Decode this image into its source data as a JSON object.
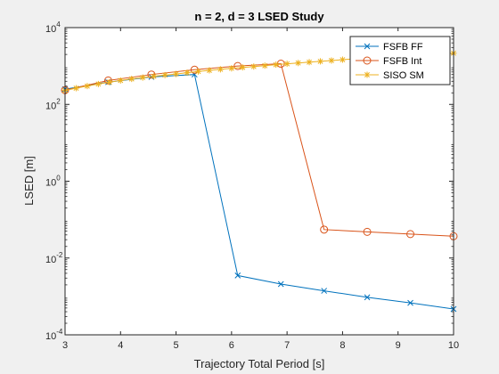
{
  "chart_data": {
    "type": "line",
    "title": "n = 2, d = 3 LSED Study",
    "xlabel": "Trajectory Total Period [s]",
    "ylabel": "LSED [m]",
    "xlim": [
      3,
      10
    ],
    "ylim": [
      0.0001,
      10000
    ],
    "yscale": "log",
    "x_ticks": [
      "3",
      "4",
      "5",
      "6",
      "7",
      "8",
      "9",
      "10"
    ],
    "y_ticks": [
      {
        "value": 0.0001,
        "base": "10",
        "exp": "-4"
      },
      {
        "value": 0.01,
        "base": "10",
        "exp": "-2"
      },
      {
        "value": 1,
        "base": "10",
        "exp": "0"
      },
      {
        "value": 100,
        "base": "10",
        "exp": "2"
      },
      {
        "value": 10000,
        "base": "10",
        "exp": "4"
      }
    ],
    "legend_position": "top-right",
    "series": [
      {
        "name": "FSFB FF",
        "color": "#0072bd",
        "marker": "x",
        "x": [
          3,
          3.778,
          4.556,
          5.333,
          6.111,
          6.889,
          7.667,
          8.444,
          9.222,
          10
        ],
        "y": [
          250,
          380,
          520,
          600,
          0.0035,
          0.0021,
          0.0014,
          0.00095,
          0.00068,
          0.00047
        ]
      },
      {
        "name": "FSFB Int",
        "color": "#d95319",
        "marker": "o",
        "x": [
          3,
          3.778,
          4.556,
          5.333,
          6.111,
          6.889,
          7.667,
          8.444,
          9.222,
          10
        ],
        "y": [
          235,
          420,
          600,
          800,
          1000,
          1150,
          0.055,
          0.048,
          0.042,
          0.037
        ]
      },
      {
        "name": "SISO SM",
        "color": "#edb120",
        "marker": "*",
        "x": [
          3,
          3.2,
          3.4,
          3.6,
          3.8,
          4,
          4.2,
          4.4,
          4.6,
          4.8,
          5,
          5.2,
          5.4,
          5.6,
          5.8,
          6,
          6.2,
          6.4,
          6.6,
          6.8,
          7,
          7.2,
          7.4,
          7.6,
          7.8,
          8,
          8.2,
          8.4,
          8.6,
          8.8,
          9,
          9.2,
          9.4,
          9.6,
          9.8,
          10
        ],
        "y": [
          230,
          265,
          300,
          340,
          380,
          420,
          460,
          500,
          540,
          580,
          620,
          670,
          720,
          770,
          820,
          870,
          920,
          970,
          1020,
          1080,
          1140,
          1200,
          1260,
          1320,
          1390,
          1460,
          1530,
          1600,
          1670,
          1740,
          1810,
          1880,
          1950,
          2020,
          2090,
          2160
        ]
      }
    ]
  }
}
